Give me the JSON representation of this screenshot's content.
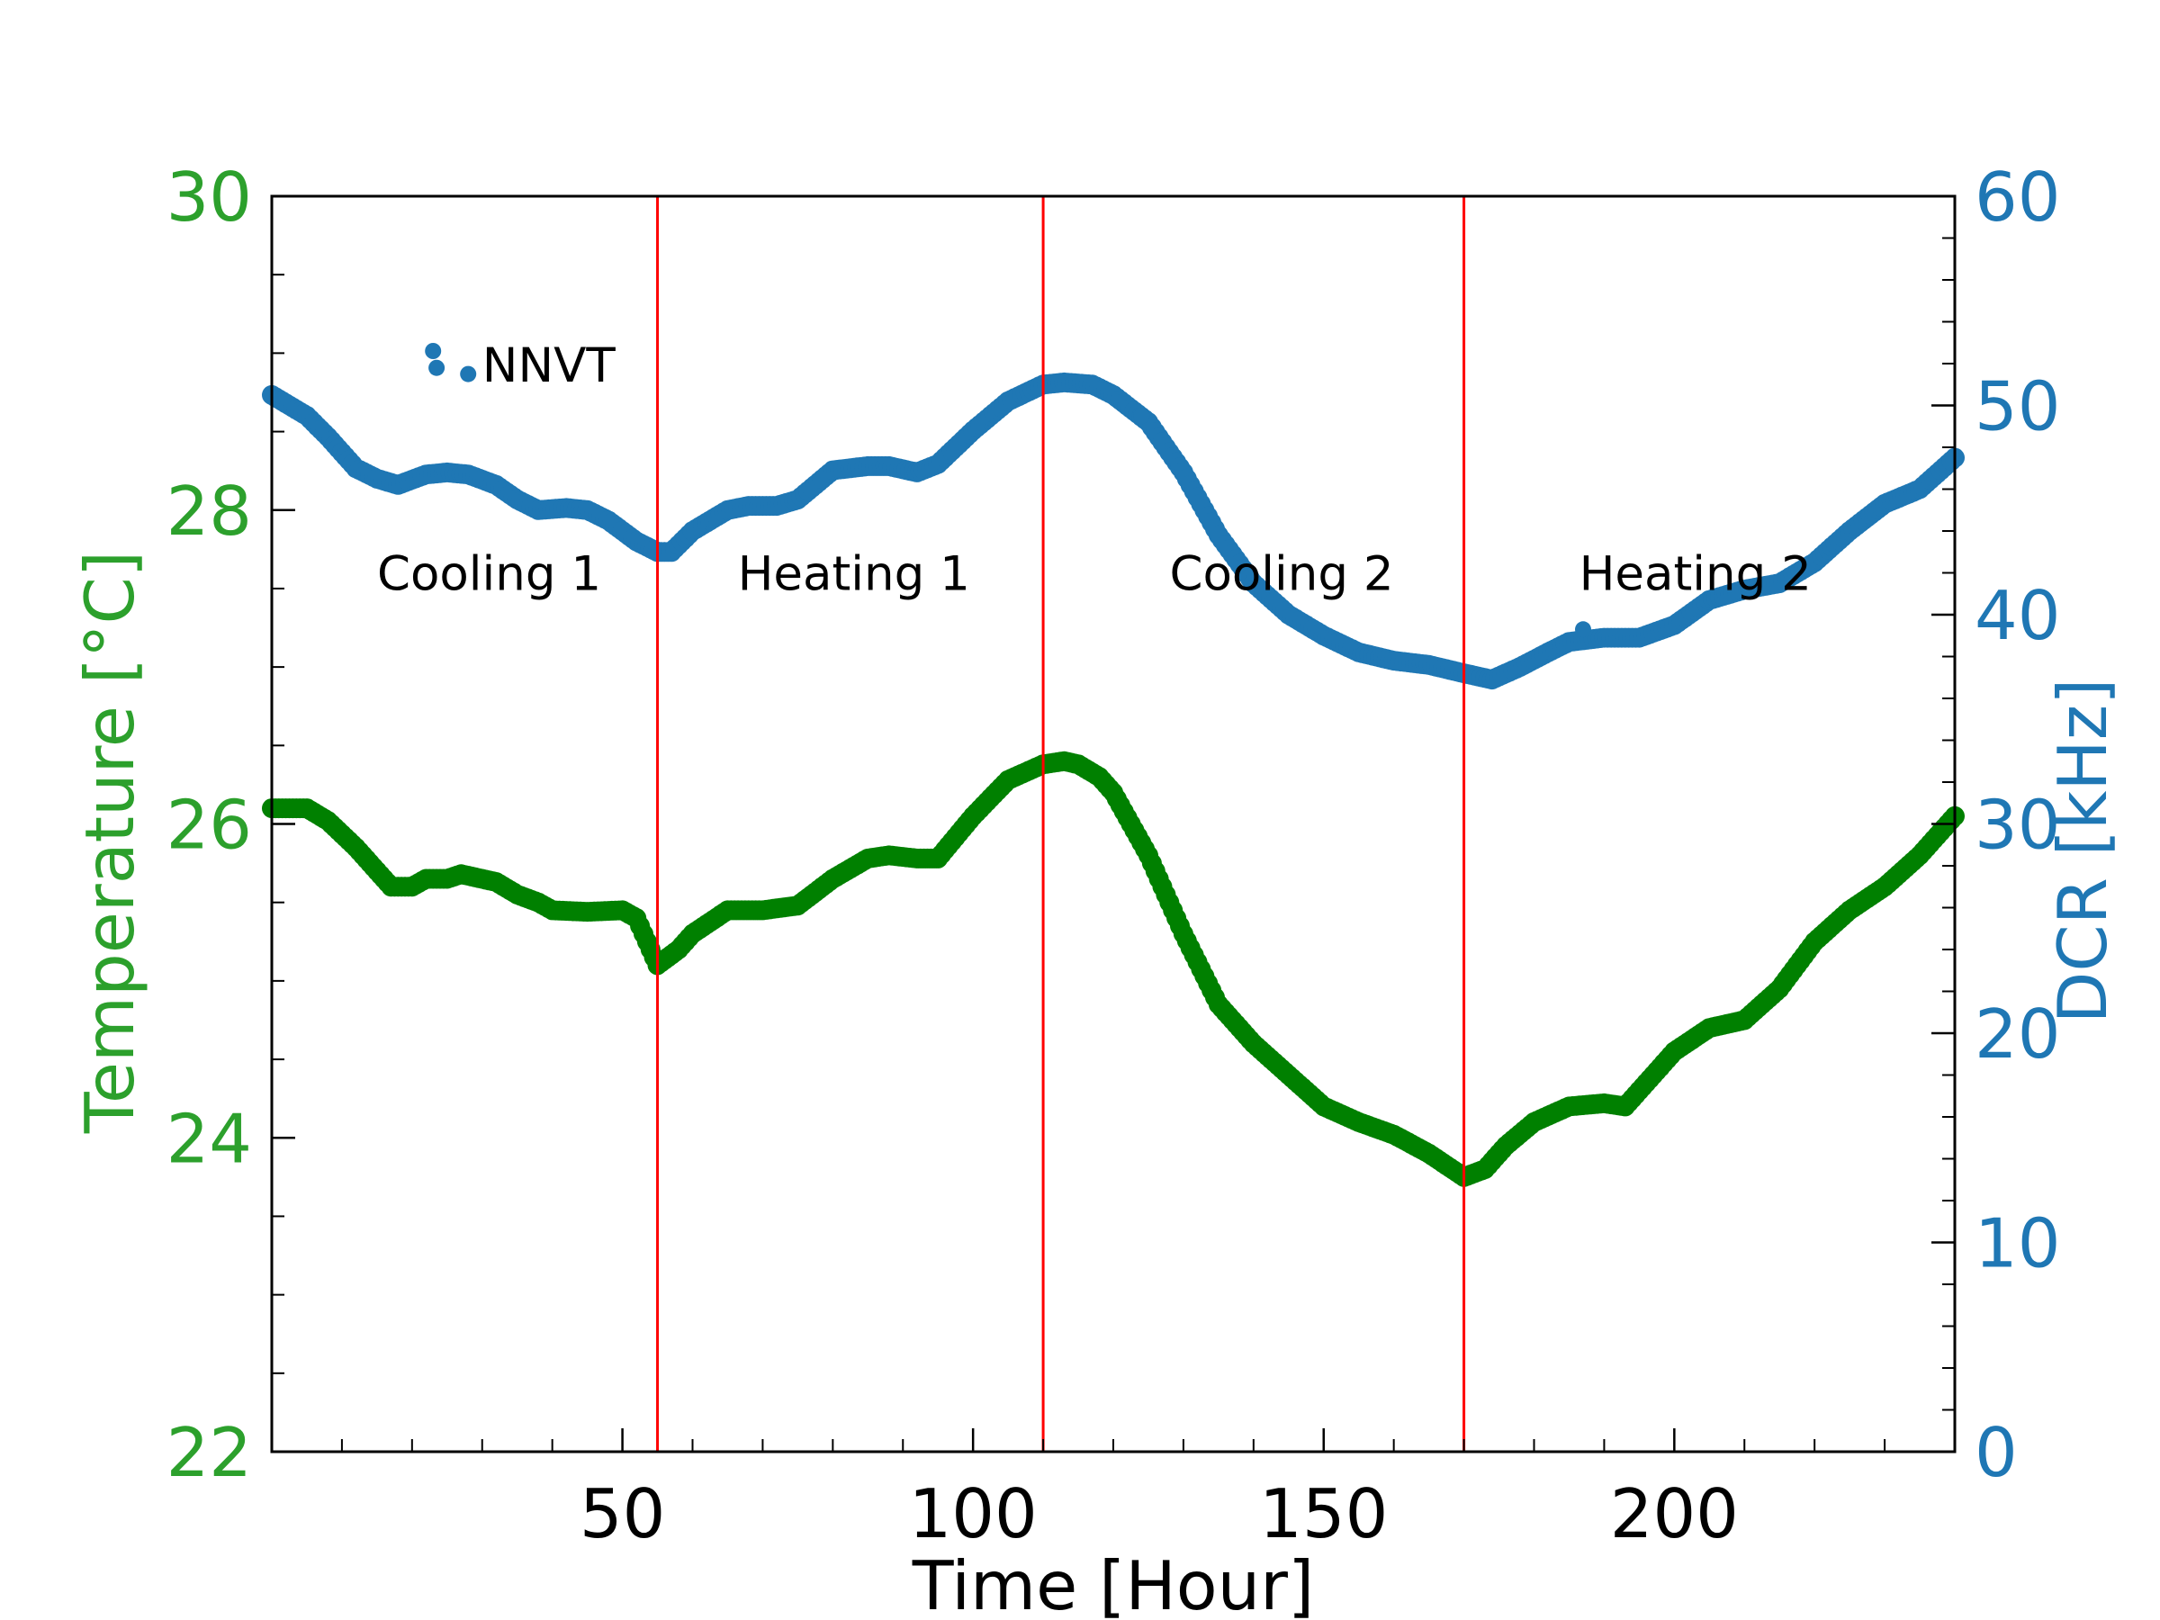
{
  "colors": {
    "temperature": "#2ca02c",
    "temperature_series": "#008000",
    "dcr": "#1f77b4",
    "region_lines": "#ff0000",
    "axis": "#000000"
  },
  "chart_data": {
    "type": "scatter",
    "xlabel": "Time [Hour]",
    "ylabel_left": "Temperature [°C]",
    "ylabel_right": "DCR [kHz]",
    "xlim": [
      0,
      240
    ],
    "ylim_left": [
      22,
      30
    ],
    "ylim_right": [
      0,
      60
    ],
    "xticks": [
      50,
      100,
      150,
      200
    ],
    "yticks_left": [
      22,
      24,
      26,
      28,
      30
    ],
    "yticks_right": [
      0,
      10,
      20,
      30,
      40,
      50,
      60
    ],
    "vertical_lines": [
      55,
      110,
      170
    ],
    "annotations": [
      "NNVT",
      "Cooling 1",
      "Heating 1",
      "Cooling 2",
      "Heating 2"
    ],
    "series": [
      {
        "name": "Temperature",
        "axis": "left",
        "points": [
          [
            0,
            26.1
          ],
          [
            3,
            26.1
          ],
          [
            5,
            26.1
          ],
          [
            8,
            26.02
          ],
          [
            12,
            25.85
          ],
          [
            15,
            25.7
          ],
          [
            17,
            25.6
          ],
          [
            20,
            25.6
          ],
          [
            22,
            25.65
          ],
          [
            25,
            25.65
          ],
          [
            27,
            25.68
          ],
          [
            30,
            25.65
          ],
          [
            32,
            25.63
          ],
          [
            35,
            25.55
          ],
          [
            38,
            25.5
          ],
          [
            40,
            25.45
          ],
          [
            45,
            25.44
          ],
          [
            50,
            25.45
          ],
          [
            52,
            25.4
          ],
          [
            55,
            25.1
          ],
          [
            58,
            25.2
          ],
          [
            60,
            25.3
          ],
          [
            65,
            25.45
          ],
          [
            70,
            25.45
          ],
          [
            75,
            25.48
          ],
          [
            80,
            25.65
          ],
          [
            85,
            25.78
          ],
          [
            88,
            25.8
          ],
          [
            92,
            25.78
          ],
          [
            95,
            25.78
          ],
          [
            100,
            26.05
          ],
          [
            105,
            26.28
          ],
          [
            110,
            26.38
          ],
          [
            113,
            26.4
          ],
          [
            115,
            26.38
          ],
          [
            118,
            26.3
          ],
          [
            120,
            26.2
          ],
          [
            125,
            25.8
          ],
          [
            130,
            25.3
          ],
          [
            135,
            24.85
          ],
          [
            140,
            24.6
          ],
          [
            145,
            24.4
          ],
          [
            150,
            24.2
          ],
          [
            155,
            24.1
          ],
          [
            160,
            24.02
          ],
          [
            165,
            23.9
          ],
          [
            170,
            23.75
          ],
          [
            173,
            23.8
          ],
          [
            176,
            23.95
          ],
          [
            180,
            24.1
          ],
          [
            185,
            24.2
          ],
          [
            190,
            24.22
          ],
          [
            193,
            24.2
          ],
          [
            196,
            24.35
          ],
          [
            200,
            24.55
          ],
          [
            205,
            24.7
          ],
          [
            210,
            24.75
          ],
          [
            215,
            24.95
          ],
          [
            220,
            25.25
          ],
          [
            225,
            25.45
          ],
          [
            230,
            25.6
          ],
          [
            235,
            25.8
          ],
          [
            240,
            26.05
          ]
        ],
        "outliers": []
      },
      {
        "name": "NNVT DCR",
        "axis": "right",
        "points": [
          [
            0,
            50.5
          ],
          [
            5,
            49.5
          ],
          [
            8,
            48.5
          ],
          [
            12,
            47
          ],
          [
            15,
            46.5
          ],
          [
            18,
            46.2
          ],
          [
            22,
            46.7
          ],
          [
            25,
            46.8
          ],
          [
            28,
            46.7
          ],
          [
            32,
            46.2
          ],
          [
            35,
            45.5
          ],
          [
            38,
            45
          ],
          [
            42,
            45.1
          ],
          [
            45,
            45
          ],
          [
            48,
            44.5
          ],
          [
            52,
            43.5
          ],
          [
            55,
            43
          ],
          [
            57,
            43
          ],
          [
            60,
            44
          ],
          [
            65,
            45
          ],
          [
            68,
            45.2
          ],
          [
            72,
            45.2
          ],
          [
            75,
            45.5
          ],
          [
            80,
            46.9
          ],
          [
            85,
            47.1
          ],
          [
            88,
            47.1
          ],
          [
            92,
            46.8
          ],
          [
            95,
            47.2
          ],
          [
            100,
            48.8
          ],
          [
            105,
            50.2
          ],
          [
            110,
            51
          ],
          [
            113,
            51.1
          ],
          [
            117,
            51
          ],
          [
            120,
            50.5
          ],
          [
            125,
            49.2
          ],
          [
            130,
            46.8
          ],
          [
            135,
            43.8
          ],
          [
            140,
            41.5
          ],
          [
            145,
            40
          ],
          [
            150,
            39
          ],
          [
            155,
            38.2
          ],
          [
            160,
            37.8
          ],
          [
            165,
            37.6
          ],
          [
            170,
            37.2
          ],
          [
            174,
            36.9
          ],
          [
            178,
            37.5
          ],
          [
            182,
            38.2
          ],
          [
            185,
            38.7
          ],
          [
            190,
            38.9
          ],
          [
            195,
            38.9
          ],
          [
            200,
            39.5
          ],
          [
            205,
            40.7
          ],
          [
            210,
            41.2
          ],
          [
            215,
            41.5
          ],
          [
            220,
            42.5
          ],
          [
            225,
            44
          ],
          [
            230,
            45.3
          ],
          [
            235,
            46
          ],
          [
            240,
            47.5
          ]
        ],
        "outliers": [
          [
            23,
            52.6
          ],
          [
            23.5,
            51.8
          ],
          [
            28,
            51.5
          ],
          [
            124,
            49.5
          ],
          [
            187,
            39.3
          ]
        ]
      }
    ]
  }
}
